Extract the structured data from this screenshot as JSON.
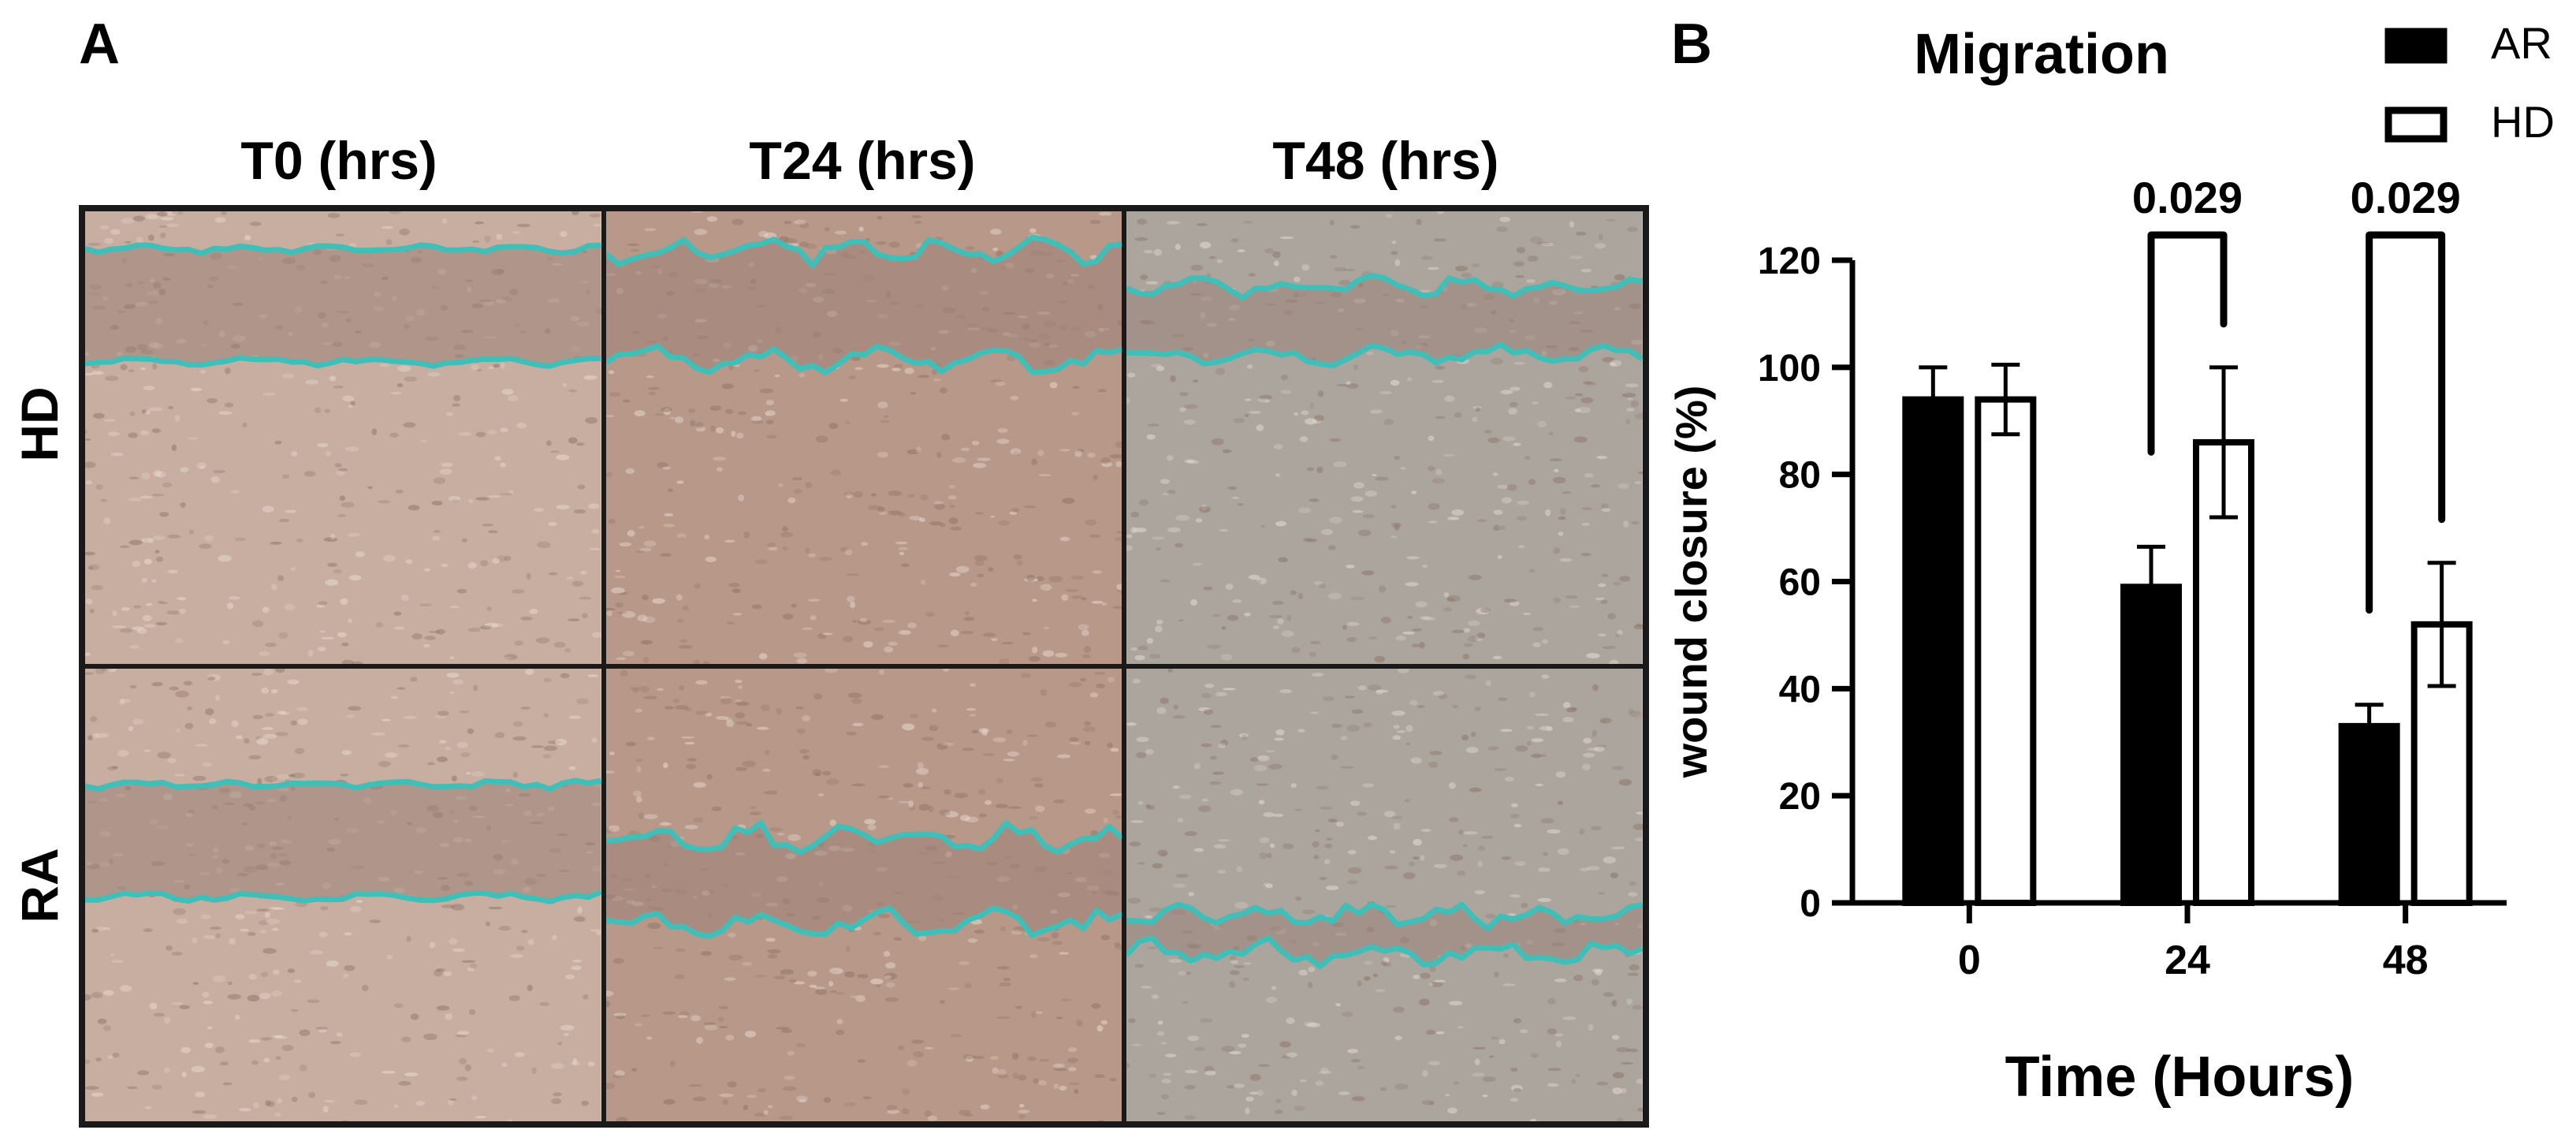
{
  "panel_a": {
    "letter": "A",
    "columns": [
      "T0 (hrs)",
      "T24 (hrs)",
      "T48 (hrs)"
    ],
    "rows": [
      "HD",
      "RA"
    ],
    "trace_color": "#3fbfb8",
    "tissue_colors": [
      "#c8aea0",
      "#b89888",
      "#aba59e"
    ]
  },
  "panel_b": {
    "letter": "B"
  },
  "chart_data": {
    "type": "bar",
    "title": "Migration",
    "xlabel": "Time (Hours)",
    "ylabel": "wound closure (%)",
    "categories": [
      "0",
      "24",
      "48"
    ],
    "ylim": [
      0,
      120
    ],
    "yticks": [
      0,
      20,
      40,
      60,
      80,
      100,
      120
    ],
    "legend_position": "top-right",
    "series": [
      {
        "name": "AR",
        "fill": "#000000",
        "values": [
          94,
          59,
          33
        ],
        "errors": [
          6,
          7.5,
          4
        ]
      },
      {
        "name": "HD",
        "fill": "#ffffff",
        "values": [
          94,
          86,
          52
        ],
        "errors": [
          6.5,
          14,
          11.5
        ]
      }
    ],
    "annotations": [
      {
        "category": "24",
        "text": "0.029"
      },
      {
        "category": "48",
        "text": "0.029"
      }
    ]
  }
}
